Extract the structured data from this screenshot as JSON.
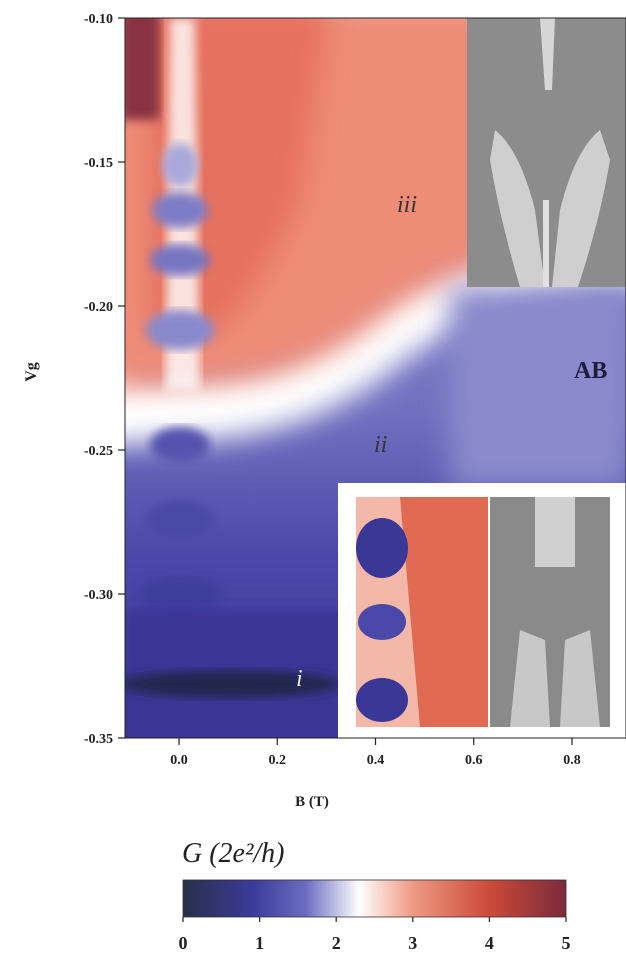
{
  "chart_data": {
    "type": "heatmap",
    "xlabel": "B (T)",
    "ylabel": "Vg",
    "xlim": [
      -0.11,
      0.91
    ],
    "ylim": [
      -0.35,
      -0.1
    ],
    "xticks": [
      {
        "value": 0,
        "label": "0.0"
      },
      0.2,
      0.4,
      0.6,
      0.8
    ],
    "yticks": [
      {
        "value": -0.1,
        "label": "-0.10"
      },
      -0.15,
      {
        "value": -0.2,
        "label": "-0.20"
      },
      -0.25,
      {
        "value": -0.3,
        "label": "-0.30"
      },
      -0.35
    ],
    "annotations": [
      "iii",
      "ii",
      "i",
      "AB"
    ],
    "colorbar": {
      "label": "G (2e²/h)",
      "range": [
        0,
        5
      ],
      "ticks": [
        0,
        1,
        2,
        3,
        4,
        5
      ]
    }
  }
}
